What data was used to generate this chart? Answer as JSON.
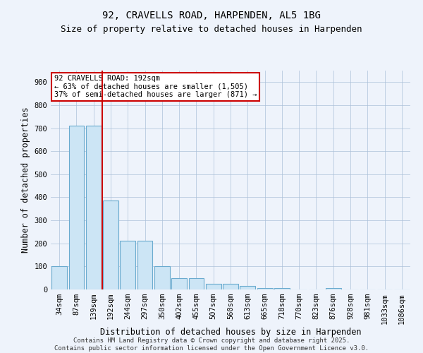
{
  "title_line1": "92, CRAVELLS ROAD, HARPENDEN, AL5 1BG",
  "title_line2": "Size of property relative to detached houses in Harpenden",
  "xlabel": "Distribution of detached houses by size in Harpenden",
  "ylabel": "Number of detached properties",
  "categories": [
    "34sqm",
    "87sqm",
    "139sqm",
    "192sqm",
    "244sqm",
    "297sqm",
    "350sqm",
    "402sqm",
    "455sqm",
    "507sqm",
    "560sqm",
    "613sqm",
    "665sqm",
    "718sqm",
    "770sqm",
    "823sqm",
    "876sqm",
    "928sqm",
    "981sqm",
    "1033sqm",
    "1086sqm"
  ],
  "values": [
    100,
    710,
    710,
    385,
    210,
    210,
    100,
    50,
    50,
    25,
    25,
    15,
    5,
    5,
    0,
    0,
    5,
    0,
    0,
    0,
    0
  ],
  "bar_color": "#cce5f5",
  "bar_edge_color": "#6aabcf",
  "vline_x_index": 3,
  "vline_color": "#cc0000",
  "annotation_text": "92 CRAVELLS ROAD: 192sqm\n← 63% of detached houses are smaller (1,505)\n37% of semi-detached houses are larger (871) →",
  "annotation_box_color": "#ffffff",
  "annotation_box_edge": "#cc0000",
  "ylim": [
    0,
    950
  ],
  "yticks": [
    0,
    100,
    200,
    300,
    400,
    500,
    600,
    700,
    800,
    900
  ],
  "background_color": "#eef3fb",
  "footer_text": "Contains HM Land Registry data © Crown copyright and database right 2025.\nContains public sector information licensed under the Open Government Licence v3.0.",
  "title_fontsize": 10,
  "subtitle_fontsize": 9,
  "axis_label_fontsize": 8.5,
  "tick_fontsize": 7.5,
  "annotation_fontsize": 7.5,
  "footer_fontsize": 6.5
}
